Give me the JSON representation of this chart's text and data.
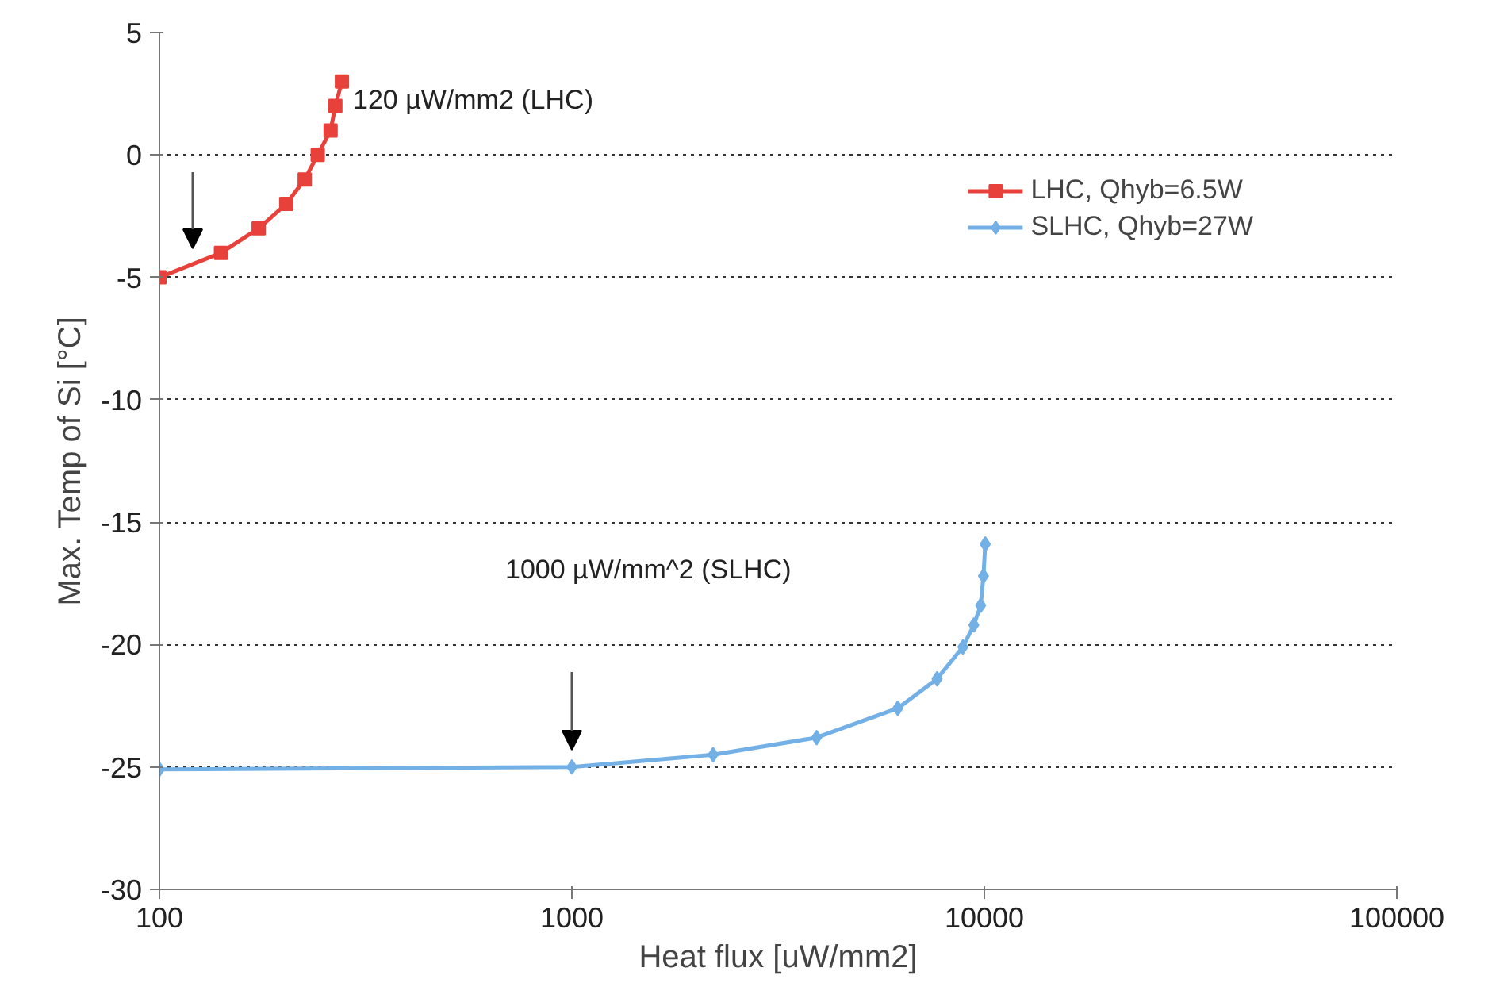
{
  "chart_data": {
    "type": "line",
    "xlabel": "Heat flux [uW/mm2]",
    "ylabel": "Max. Temp of Si [°C]",
    "log": "x",
    "xlim": [
      100,
      100000
    ],
    "xticks": [
      100,
      1000,
      10000,
      100000
    ],
    "ylim": [
      -30,
      5
    ],
    "yticks": [
      -30,
      -25,
      -20,
      -15,
      -10,
      -5,
      0,
      5
    ],
    "grid": "y",
    "legend": "top right",
    "line_style": "solid",
    "series": [
      {
        "name": "LHC, Qhyb=6.5W",
        "color": "#e8403a",
        "marker": "square",
        "x": [
          100,
          141,
          174,
          203,
          225,
          242,
          260,
          267,
          277
        ],
        "values": [
          -5,
          -4,
          -3,
          -2,
          -1,
          0,
          1,
          2,
          3
        ]
      },
      {
        "name": "SLHC, Qhyb=27W",
        "color": "#72b0e6",
        "marker": "diamond",
        "x": [
          100,
          1000,
          2200,
          3920,
          6170,
          7680,
          8870,
          9430,
          9800,
          9950,
          10050
        ],
        "values": [
          -25.1,
          -25,
          -24.5,
          -23.8,
          -22.6,
          -21.4,
          -20.1,
          -19.2,
          -18.4,
          -17.2,
          -15.9
        ]
      }
    ],
    "annotations": [
      "120 µW/mm2 (LHC)",
      "1000 µW/mm^2 (SLHC)"
    ]
  }
}
